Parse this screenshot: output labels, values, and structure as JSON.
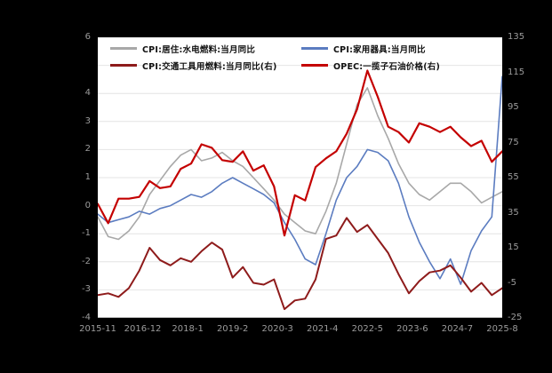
{
  "page": {
    "background_color": "#000000",
    "plot_background_color": "#ffffff",
    "tick_label_color": "#9c9c9c"
  },
  "chart_data": {
    "type": "line",
    "title": "",
    "grid": "horizontal",
    "legend_position": "top-inside",
    "x_months": [
      0,
      3,
      6,
      9,
      12,
      15,
      18,
      21,
      24,
      27,
      30,
      33,
      36,
      39,
      42,
      45,
      48,
      51,
      54,
      57,
      60,
      63,
      66,
      69,
      72,
      75,
      78,
      81,
      84,
      87,
      90,
      93,
      96,
      99,
      102,
      105,
      108,
      111,
      114,
      117
    ],
    "x_tick_labels": [
      {
        "label": "2015-11",
        "month": 0
      },
      {
        "label": "2016-12",
        "month": 13
      },
      {
        "label": "2018-1",
        "month": 26
      },
      {
        "label": "2019-2",
        "month": 39
      },
      {
        "label": "2020-3",
        "month": 52
      },
      {
        "label": "2021-4",
        "month": 65
      },
      {
        "label": "2022-5",
        "month": 78
      },
      {
        "label": "2023-6",
        "month": 91
      },
      {
        "label": "2024-7",
        "month": 104
      },
      {
        "label": "2025-8",
        "month": 117
      }
    ],
    "left_axis": {
      "min": -4,
      "max": 6,
      "ticks": [
        6,
        4,
        3,
        2,
        1,
        0,
        -1,
        -2,
        -3,
        -4
      ]
    },
    "right_axis": {
      "min": -25,
      "max": 135,
      "ticks": [
        135,
        115,
        95,
        75,
        55,
        35,
        15,
        -5,
        -25
      ]
    },
    "series": [
      {
        "id": "cpi-residence-utilities",
        "name": "CPI:居住:水电燃料:当月同比",
        "axis": "left",
        "color": "#a8a8a8",
        "width": 1.6,
        "values": [
          -0.4,
          -1.1,
          -1.2,
          -0.9,
          -0.4,
          0.4,
          0.9,
          1.4,
          1.8,
          2.0,
          1.6,
          1.7,
          1.9,
          1.6,
          1.4,
          1.0,
          0.6,
          0.2,
          -0.3,
          -0.6,
          -0.9,
          -1.0,
          -0.2,
          0.8,
          2.2,
          3.6,
          4.2,
          3.2,
          2.4,
          1.5,
          0.8,
          0.4,
          0.2,
          0.5,
          0.8,
          0.8,
          0.5,
          0.1,
          0.3,
          0.5
        ]
      },
      {
        "id": "cpi-household-appliances",
        "name": "CPI:家用器具:当月同比",
        "axis": "left",
        "color": "#5b7cc0",
        "width": 1.6,
        "values": [
          -0.3,
          -0.6,
          -0.5,
          -0.4,
          -0.2,
          -0.3,
          -0.1,
          0.0,
          0.2,
          0.4,
          0.3,
          0.5,
          0.8,
          1.0,
          0.8,
          0.6,
          0.4,
          0.1,
          -0.6,
          -1.2,
          -1.9,
          -2.1,
          -1.0,
          0.2,
          1.0,
          1.4,
          2.0,
          1.9,
          1.6,
          0.8,
          -0.4,
          -1.3,
          -2.0,
          -2.6,
          -1.9,
          -2.8,
          -1.6,
          -0.9,
          -0.4,
          4.6
        ]
      },
      {
        "id": "cpi-transport-fuel",
        "name": "CPI:交通工具用燃料:当月同比(右)",
        "axis": "right",
        "color": "#8e1b1b",
        "width": 2.0,
        "values": [
          -12,
          -11,
          -13,
          -8,
          2,
          15,
          8,
          5,
          9,
          7,
          13,
          18,
          14,
          -2,
          4,
          -5,
          -6,
          -3,
          -20,
          -15,
          -14,
          -3,
          20,
          22,
          32,
          24,
          28,
          20,
          12,
          0,
          -11,
          -4,
          1,
          2,
          5,
          -2,
          -10,
          -5,
          -12,
          -8
        ]
      },
      {
        "id": "opec-basket-price",
        "name": "OPEC:一揽子石油价格(右)",
        "axis": "right",
        "color": "#c40000",
        "width": 2.2,
        "values": [
          40,
          29,
          43,
          43,
          44,
          53,
          49,
          50,
          60,
          63,
          74,
          72,
          65,
          64,
          70,
          59,
          62,
          50,
          22,
          45,
          42,
          61,
          66,
          70,
          80,
          94,
          116,
          101,
          84,
          81,
          75,
          86,
          84,
          81,
          84,
          78,
          73,
          76,
          64,
          70
        ]
      }
    ]
  }
}
